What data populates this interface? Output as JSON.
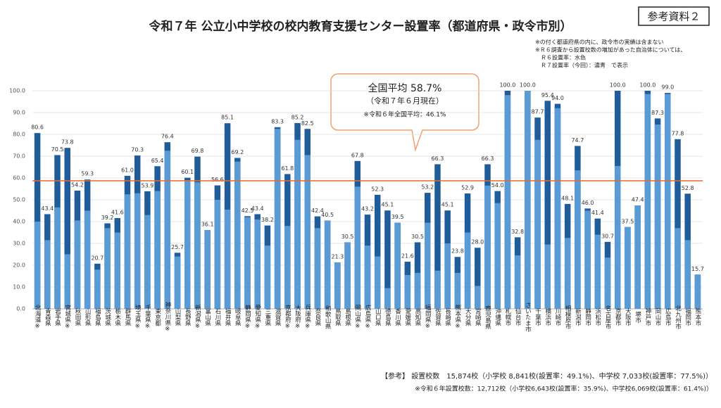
{
  "chart_data": {
    "type": "bar",
    "title": "令和７年 公立小中学校の校内教育支援センター設置率（都道府県・政令市別）",
    "badge": "参考資料２",
    "notes": [
      "※の付く都道府県の内に、政令市の実績は含まない",
      "※Ｒ６調査から設置校数の増加があった自治体については、",
      "　Ｒ６設置率：水色",
      "　Ｒ７設置率（今回）：濃青　で表示"
    ],
    "callout": [
      "全国平均 58.7%",
      "（令和７年６月現在）",
      "※令和６年全国平均：46.1%"
    ],
    "average": {
      "value": 58.7,
      "color": "#e8692c"
    },
    "footer": [
      "【参考】 設置校数　15,874校（小学校 8,841校(設置率：49.1%)、中学校 7,033校(設置率：77.5%)）",
      "※令和６年設置校数：12,712校（小学校6,643校(設置率：35.9%)、中学校6,069校(設置率：61.4%)）"
    ],
    "categories": [
      "北海道※",
      "青森県",
      "岩手県",
      "宮城県※",
      "秋田県",
      "山形県",
      "福島県",
      "茨城県",
      "栃木県",
      "群馬県",
      "埼玉県※",
      "千葉県※",
      "東京都",
      "神奈川県※",
      "山梨県",
      "長野県",
      "新潟県※",
      "富山県",
      "石川県",
      "福井県",
      "岐阜県",
      "静岡県※",
      "愛知県※",
      "三重県",
      "滋賀県",
      "京都府※",
      "大阪府※",
      "兵庫県※",
      "奈良県",
      "和歌山県",
      "鳥取県",
      "島根県",
      "岡山県※",
      "広島県※",
      "山口県",
      "徳島県",
      "香川県",
      "愛媛県",
      "高知県",
      "福岡県※",
      "佐賀県",
      "長崎県",
      "熊本県※",
      "大分県",
      "宮崎県",
      "鹿児島県",
      "沖縄県",
      "札幌市",
      "仙台市",
      "さいたま市",
      "千葉市",
      "横浜市",
      "川崎市",
      "相模原市",
      "新潟市",
      "静岡市",
      "浜松市",
      "名古屋市",
      "京都市",
      "大阪市",
      "堺市",
      "神戸市",
      "岡山市",
      "広島市",
      "北九州市",
      "福岡市",
      "熊本市"
    ],
    "series": [
      {
        "color": "#1f5c99",
        "values": [
          80.6,
          43.4,
          70.5,
          73.8,
          54.2,
          59.3,
          20.7,
          39.2,
          41.6,
          61.0,
          70.3,
          53.9,
          65.4,
          76.4,
          25.7,
          60.1,
          69.8,
          36.1,
          56.6,
          85.1,
          69.2,
          42.5,
          43.4,
          38.2,
          83.3,
          61.8,
          85.2,
          82.5,
          42.4,
          40.5,
          21.3,
          30.5,
          67.8,
          43.2,
          52.3,
          45.1,
          39.5,
          21.6,
          30.5,
          53.2,
          66.3,
          45.1,
          23.8,
          52.9,
          28.0,
          66.3,
          54.0,
          100.0,
          32.8,
          100.0,
          87.7,
          95.4,
          94.0,
          48.1,
          74.7,
          46.0,
          41.4,
          30.7,
          100.0,
          37.5,
          47.4,
          100.0,
          87.3,
          99.0,
          77.8,
          52.8,
          15.7
        ],
        "value_labels": [
          "80.6",
          "43.4",
          "70.5",
          "73.8",
          "54.2",
          "59.3",
          "20.7",
          "39.2",
          "41.6",
          "61.0",
          "70.3",
          "53.9",
          "65.4",
          "76.4",
          "25.7",
          "60.1",
          "69.8",
          "36.1",
          "56.6",
          "85.1",
          "69.2",
          "42.5",
          "43.4",
          "38.2",
          "83.3",
          "61.8",
          "85.2",
          "82.5",
          "42.4",
          "40.5",
          "21.3",
          "30.5",
          "67.8",
          "43.2",
          "52.3",
          "45.1",
          "39.5",
          "21.6",
          "30.5",
          "53.2",
          "66.3",
          "45.1",
          "23.8",
          "52.9",
          "28.0",
          "66.3",
          "54.0",
          "100.0",
          "32.8",
          "100.0",
          "87.7",
          "95.4",
          "94.0",
          "48.1",
          "74.7",
          "46.0",
          "41.4",
          "30.7",
          "100.0",
          "37.5",
          "47.4",
          "100.0",
          "87.3",
          "99.0",
          "77.8",
          "52.8",
          "15.7"
        ]
      },
      {
        "color": "#5b9bd5",
        "values": [
          40,
          31.5,
          46.5,
          25,
          40.5,
          45,
          18,
          37,
          35,
          52.5,
          53,
          43,
          54,
          72.5,
          24,
          59,
          58,
          36.1,
          50,
          45.5,
          67.5,
          42,
          41,
          29,
          82.5,
          38,
          77.5,
          70.5,
          37,
          40.5,
          21.3,
          30.5,
          56,
          29,
          24,
          9.5,
          39.5,
          15.5,
          16.5,
          39.5,
          17.5,
          30,
          16.5,
          35,
          10.5,
          56.5,
          48.5,
          98,
          24.5,
          100,
          77.5,
          29.5,
          92,
          32.5,
          63.5,
          45,
          34,
          23.5,
          65.5,
          37.5,
          47.4,
          98.5,
          84.5,
          98.5,
          37,
          31.5,
          15.7
        ]
      }
    ],
    "ylim": [
      0,
      100
    ],
    "yticks": [
      {
        "value": 0,
        "label": "0.0"
      },
      {
        "value": 10,
        "label": "10.0"
      },
      {
        "value": 20,
        "label": "20.0"
      },
      {
        "value": 30,
        "label": "30.0"
      },
      {
        "value": 40,
        "label": "40.0"
      },
      {
        "value": 50,
        "label": "50.0"
      },
      {
        "value": 60,
        "label": "60.0"
      },
      {
        "value": 70,
        "label": "70.0"
      },
      {
        "value": 80,
        "label": "80.0"
      },
      {
        "value": 90,
        "label": "90.0"
      },
      {
        "value": 100,
        "label": "100.0"
      }
    ],
    "grid": true
  }
}
